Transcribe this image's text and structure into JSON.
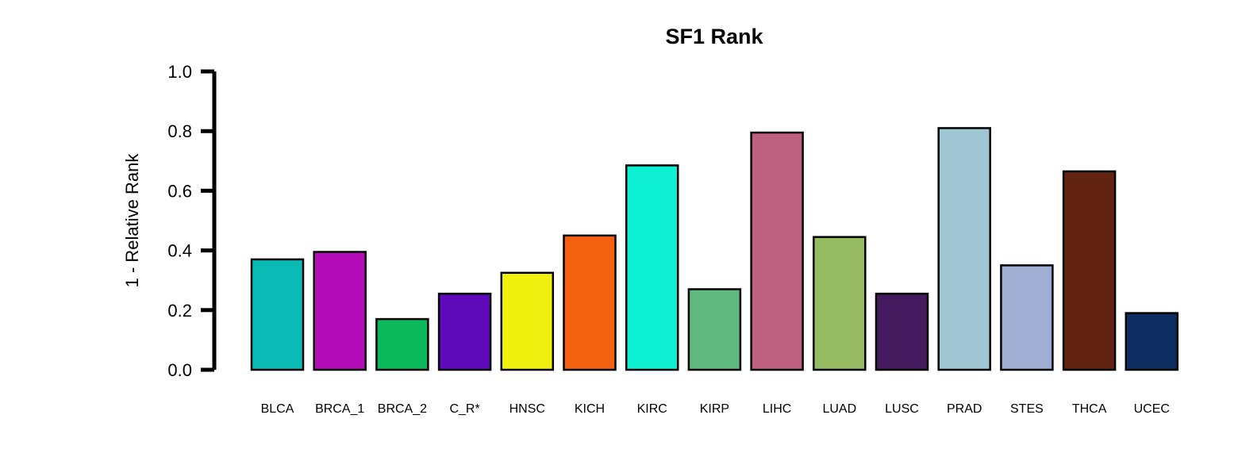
{
  "chart_data": {
    "type": "bar",
    "title": "SF1 Rank",
    "xlabel": "",
    "ylabel": "1 - Relative Rank",
    "ylim": [
      0,
      1
    ],
    "yticks": [
      "0.0",
      "0.2",
      "0.4",
      "0.6",
      "0.8",
      "1.0"
    ],
    "grid": false,
    "legend": "none",
    "categories": [
      "BLCA",
      "BRCA_1",
      "BRCA_2",
      "C_R*",
      "HNSC",
      "KICH",
      "KIRC",
      "KIRP",
      "LIHC",
      "LUAD",
      "LUSC",
      "PRAD",
      "STES",
      "THCA",
      "UCEC"
    ],
    "values": [
      0.37,
      0.395,
      0.17,
      0.255,
      0.325,
      0.45,
      0.685,
      0.27,
      0.795,
      0.445,
      0.255,
      0.81,
      0.35,
      0.665,
      0.19
    ],
    "colors": [
      "#0abab5",
      "#b40cb8",
      "#0bb85a",
      "#5e0aba",
      "#f0f00e",
      "#f26010",
      "#0ef0d2",
      "#60ba80",
      "#be6080",
      "#96ba62",
      "#461a5e",
      "#a0c6d4",
      "#a0aed4",
      "#622410",
      "#0e2e62"
    ]
  }
}
